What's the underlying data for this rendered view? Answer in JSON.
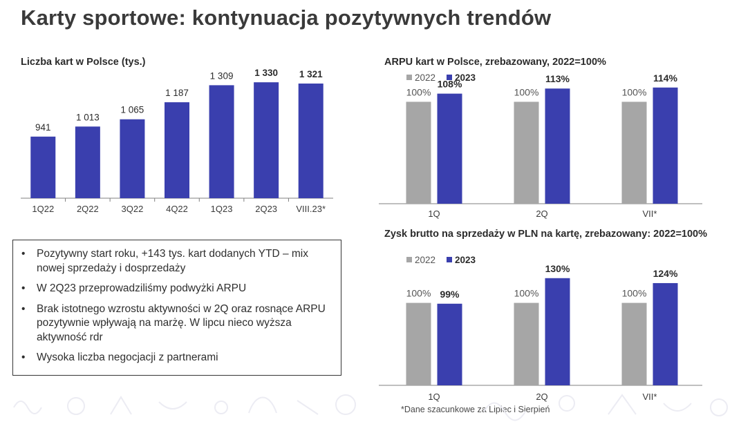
{
  "title": "Karty sportowe: kontynuacja pozytywnych trendów",
  "colors": {
    "primary": "#3a3fae",
    "secondary": "#a6a6a6",
    "axis": "#7f7f7f"
  },
  "bullets": [
    "Pozytywny start roku, +143 tys. kart dodanych YTD – mix nowej sprzedaży i dosprzedaży",
    "W 2Q23 przeprowadziliśmy podwyżki ARPU",
    "Brak istotnego wzrostu aktywności w 2Q oraz rosnące ARPU pozytywnie wpływają na marżę. W lipcu nieco wyższa aktywność rdr",
    "Wysoka liczba negocjacji z partnerami"
  ],
  "footnote": "*Dane szacunkowe za Lipiec i Sierpień",
  "chart_data": [
    {
      "type": "bar",
      "title": "Liczba kart w Polsce (tys.)",
      "categories": [
        "1Q22",
        "2Q22",
        "3Q22",
        "4Q22",
        "1Q23",
        "2Q23",
        "VIII.23*"
      ],
      "values": [
        941,
        1013,
        1065,
        1187,
        1309,
        1330,
        1321
      ],
      "value_labels": [
        "941",
        "1 013",
        "1 065",
        "1 187",
        "1 309",
        "1 330",
        "1 321"
      ],
      "bold_labels": [
        false,
        false,
        false,
        false,
        false,
        true,
        true
      ],
      "ylim": [
        500,
        1400
      ],
      "color": "#3a3fae"
    },
    {
      "type": "bar",
      "title": "ARPU kart w Polsce, zrebazowany, 2022=100%",
      "categories": [
        "1Q",
        "2Q",
        "VII*"
      ],
      "series": [
        {
          "name": "2022",
          "values": [
            100,
            100,
            100
          ],
          "labels": [
            "100%",
            "100%",
            "100%"
          ],
          "color": "#a6a6a6"
        },
        {
          "name": "2023",
          "values": [
            108,
            113,
            114
          ],
          "labels": [
            "108%",
            "113%",
            "114%"
          ],
          "color": "#3a3fae"
        }
      ],
      "ylim": [
        0,
        145
      ],
      "legend": "top-left"
    },
    {
      "type": "bar",
      "title": "Zysk brutto na sprzedaży w PLN na kartę, zrebazowany: 2022=100%",
      "categories": [
        "1Q",
        "2Q",
        "VII*"
      ],
      "series": [
        {
          "name": "2022",
          "values": [
            100,
            100,
            100
          ],
          "labels": [
            "100%",
            "100%",
            "100%"
          ],
          "color": "#a6a6a6"
        },
        {
          "name": "2023",
          "values": [
            99,
            130,
            124
          ],
          "labels": [
            "99%",
            "130%",
            "124%"
          ],
          "color": "#3a3fae"
        }
      ],
      "ylim": [
        0,
        165
      ],
      "legend": "top-left"
    }
  ]
}
